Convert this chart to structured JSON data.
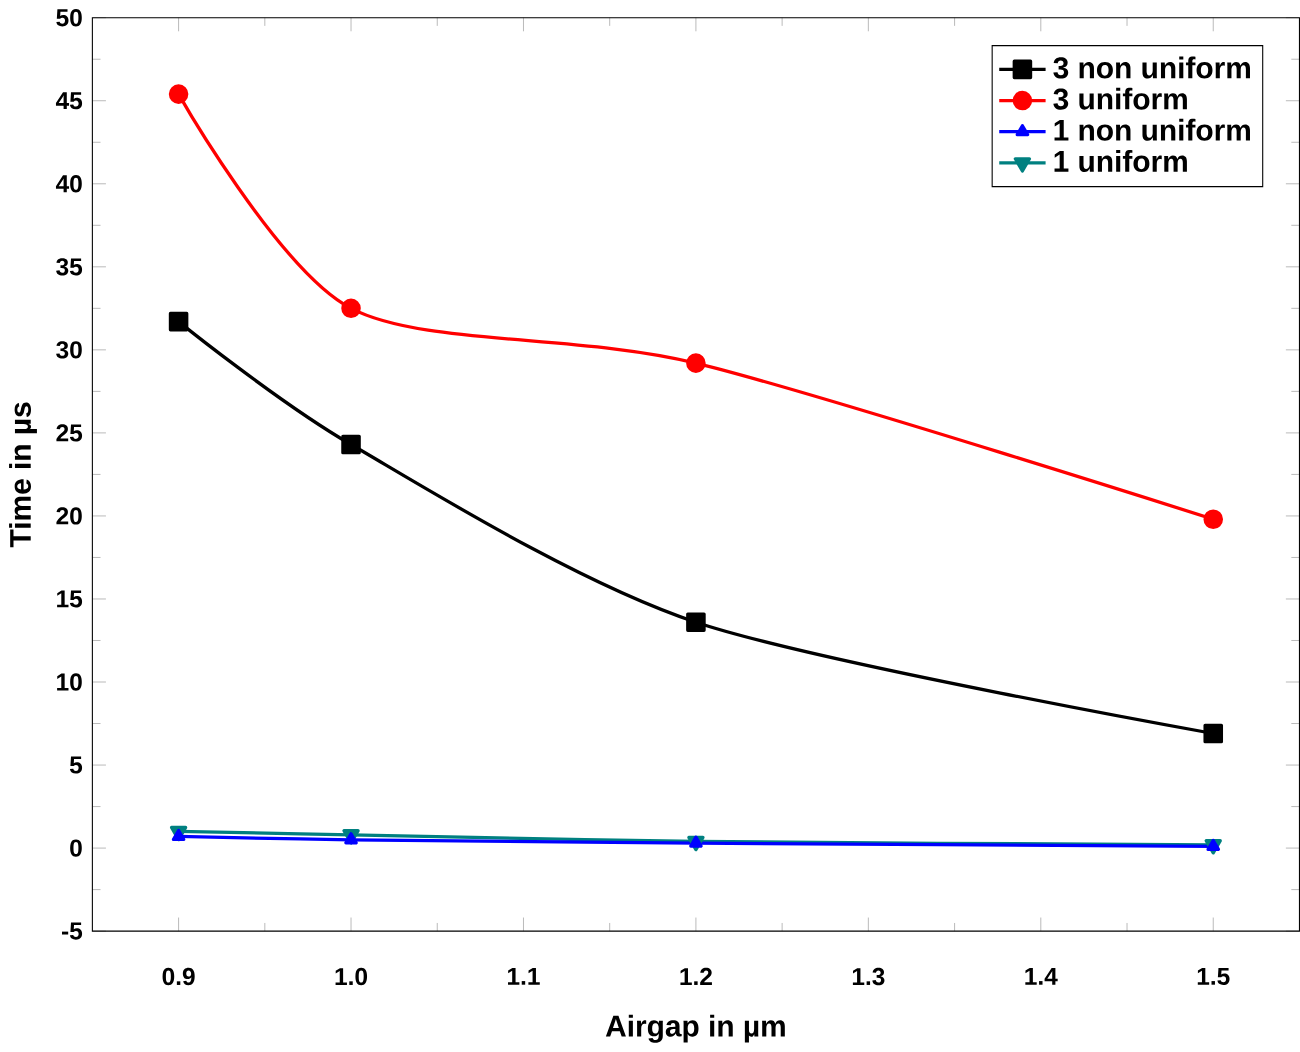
{
  "chart_data": {
    "type": "line",
    "xlabel": "Airgap in µm",
    "ylabel": "Time in µs",
    "x": [
      0.9,
      1.0,
      1.2,
      1.5
    ],
    "series": [
      {
        "name": "3 non uniform",
        "color": "#000000",
        "marker": "square",
        "values": [
          31.7,
          24.3,
          13.6,
          6.9
        ]
      },
      {
        "name": "3 uniform",
        "color": "#ff0000",
        "marker": "circle",
        "values": [
          45.4,
          32.5,
          29.2,
          19.8
        ]
      },
      {
        "name": "1 non uniform",
        "color": "#0000ff",
        "marker": "triangle",
        "values": [
          0.7,
          0.5,
          0.3,
          0.1
        ]
      },
      {
        "name": "1 uniform",
        "color": "#008080",
        "marker": "triangle down",
        "values": [
          1.0,
          0.8,
          0.4,
          0.2
        ]
      }
    ],
    "xlim": [
      0.85,
      1.55
    ],
    "xticks": [
      {
        "value": 0.9,
        "label": "0.9"
      },
      {
        "value": 1.0,
        "label": "1.0"
      },
      {
        "value": 1.1,
        "label": "1.1"
      },
      {
        "value": 1.2,
        "label": "1.2"
      },
      {
        "value": 1.3,
        "label": "1.3"
      },
      {
        "value": 1.4,
        "label": "1.4"
      },
      {
        "value": 1.5,
        "label": "1.5"
      }
    ],
    "ylim": [
      -5,
      50
    ],
    "yticks": [
      -5,
      0,
      5,
      10,
      15,
      20,
      25,
      30,
      35,
      40,
      45,
      50
    ],
    "legend": "top right",
    "grid": false
  }
}
